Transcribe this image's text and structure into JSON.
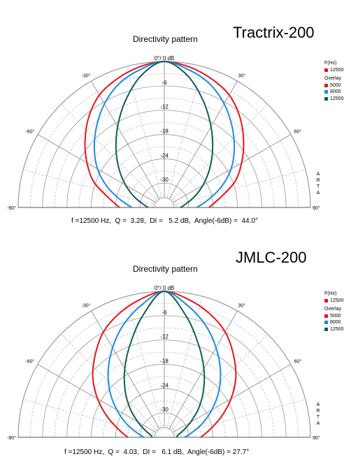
{
  "panels": [
    {
      "title": "Tractrix-200",
      "plot_title": "Directivity pattern",
      "legend": {
        "header": "F(Hz)",
        "main": "12500",
        "overlay_label": "Overlay",
        "overlays": [
          "5000",
          "8000",
          "12500"
        ]
      },
      "stats": "f =12500 Hz,  Q =  3.28,  DI =   5.2 dB,  Angle(-6dB) =  44.0°",
      "arta": "ARTA"
    },
    {
      "title": "JMLC-200",
      "plot_title": "Directivity pattern",
      "legend": {
        "header": "F(Hz)",
        "main": "12500",
        "overlay_label": "Overlay",
        "overlays": [
          "5000",
          "8000",
          "12500"
        ]
      },
      "stats": "f =12500 Hz,  Q =  4.03,  DI =   6.1 dB,  Angle(-6dB) = 27.7°",
      "arta": "ARTA"
    }
  ],
  "colors": {
    "red": "#e8141b",
    "blue": "#1a8ce0",
    "teal": "#0f5c5e",
    "grid": "#888888"
  },
  "chart_data": [
    {
      "type": "polar",
      "title": "Directivity pattern",
      "radial_ticks": [
        "0°/ 0 dB",
        "-6",
        "-12",
        "-18",
        "-24",
        "-30"
      ],
      "radial_values": [
        0,
        -6,
        -12,
        -18,
        -24,
        -30
      ],
      "rlim": [
        -36,
        0
      ],
      "angle_labels": [
        "-90°",
        "-60°",
        "-30°",
        "30°",
        "60°",
        "90°"
      ],
      "angle_values": [
        -90,
        -60,
        -30,
        30,
        60,
        90
      ],
      "angle_range": [
        -90,
        90
      ],
      "series": [
        {
          "name": "5000",
          "color": "#e8141b",
          "angles": [
            0,
            10,
            20,
            30,
            40,
            50,
            60,
            70,
            80,
            90
          ],
          "values_db": [
            0,
            -0.8,
            -2.2,
            -4,
            -7,
            -10.5,
            -14,
            -17.5,
            -22,
            -25
          ]
        },
        {
          "name": "8000",
          "color": "#1a8ce0",
          "angles": [
            0,
            10,
            20,
            30,
            40,
            50,
            60,
            70,
            80,
            90
          ],
          "values_db": [
            0,
            -1.5,
            -3.5,
            -6.5,
            -10,
            -13.5,
            -17,
            -21,
            -25,
            -28
          ]
        },
        {
          "name": "12500",
          "color": "#0f5c5e",
          "angles": [
            0,
            10,
            20,
            30,
            40,
            50,
            60,
            70,
            80,
            90
          ],
          "values_db": [
            0,
            -3,
            -8,
            -13,
            -17.5,
            -21.5,
            -25,
            -28,
            -30.5,
            -32
          ]
        }
      ]
    },
    {
      "type": "polar",
      "title": "Directivity pattern",
      "radial_ticks": [
        "0°/ 0 dB",
        "-6",
        "-12",
        "-18",
        "-24",
        "-30"
      ],
      "radial_values": [
        0,
        -6,
        -12,
        -18,
        -24,
        -30
      ],
      "rlim": [
        -36,
        0
      ],
      "angle_labels": [
        "-90°",
        "-60°",
        "-30°",
        "30°",
        "60°",
        "90°"
      ],
      "angle_values": [
        -90,
        -60,
        -30,
        30,
        60,
        90
      ],
      "angle_range": [
        -90,
        90
      ],
      "series": [
        {
          "name": "5000",
          "color": "#e8141b",
          "angles": [
            0,
            10,
            20,
            30,
            40,
            50,
            60,
            70,
            80,
            90
          ],
          "values_db": [
            0,
            -1.5,
            -3.5,
            -6,
            -9.5,
            -13,
            -17,
            -21,
            -24.5,
            -27
          ]
        },
        {
          "name": "8000",
          "color": "#1a8ce0",
          "angles": [
            0,
            10,
            20,
            30,
            40,
            50,
            60,
            70,
            80,
            90
          ],
          "values_db": [
            0,
            -3,
            -6.5,
            -10.5,
            -14.5,
            -18.5,
            -22.5,
            -26,
            -29,
            -31
          ]
        },
        {
          "name": "12500",
          "color": "#0f5c5e",
          "angles": [
            0,
            10,
            20,
            30,
            40,
            50,
            60,
            70,
            80,
            90
          ],
          "values_db": [
            0,
            -5.5,
            -11.5,
            -16.5,
            -21,
            -25,
            -28.5,
            -31,
            -32.5,
            -33
          ]
        }
      ]
    }
  ]
}
